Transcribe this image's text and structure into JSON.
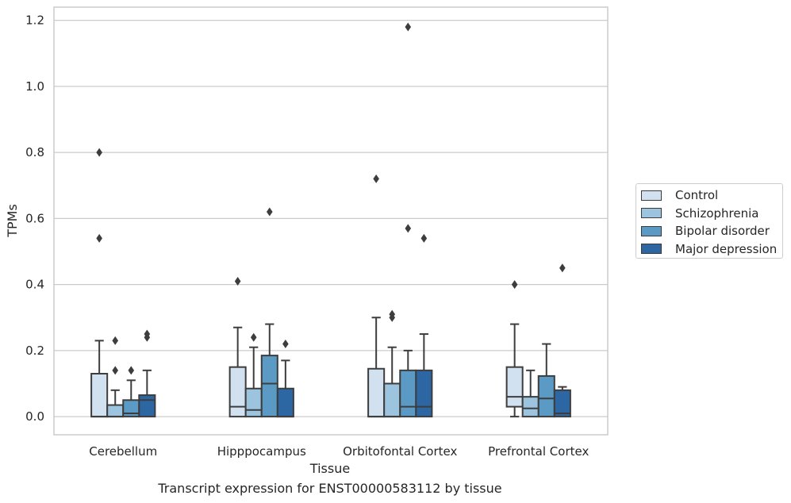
{
  "chart_data": {
    "type": "box",
    "xlabel": "Tissue",
    "ylabel": "TPMs",
    "caption": "Transcript expression for ENST00000583112 by tissue",
    "ylim": [
      -0.055,
      1.24
    ],
    "yticks": [
      "0.0",
      "0.2",
      "0.4",
      "0.6",
      "0.8",
      "1.0",
      "1.2"
    ],
    "ytick_values": [
      0.0,
      0.2,
      0.4,
      0.6,
      0.8,
      1.0,
      1.2
    ],
    "grid": true,
    "legend_position": "right",
    "categories": [
      "Cerebellum",
      "Hipppocampus",
      "Orbitofontal Cortex",
      "Prefrontal Cortex"
    ],
    "series": [
      {
        "name": "Control",
        "color": "#d1e1f0",
        "boxes": [
          {
            "min": 0.0,
            "q1": 0.0,
            "median": 0.0,
            "q3": 0.13,
            "max": 0.23,
            "outliers": [
              0.54,
              0.8
            ]
          },
          {
            "min": 0.0,
            "q1": 0.0,
            "median": 0.03,
            "q3": 0.15,
            "max": 0.27,
            "outliers": [
              0.41
            ]
          },
          {
            "min": 0.0,
            "q1": 0.0,
            "median": 0.0,
            "q3": 0.145,
            "max": 0.3,
            "outliers": [
              0.72
            ]
          },
          {
            "min": 0.0,
            "q1": 0.03,
            "median": 0.06,
            "q3": 0.15,
            "max": 0.28,
            "outliers": [
              0.4
            ]
          }
        ]
      },
      {
        "name": "Schizophrenia",
        "color": "#9cc4de",
        "boxes": [
          {
            "min": 0.0,
            "q1": 0.0,
            "median": 0.0,
            "q3": 0.035,
            "max": 0.08,
            "outliers": [
              0.14,
              0.23
            ]
          },
          {
            "min": 0.0,
            "q1": 0.0,
            "median": 0.02,
            "q3": 0.085,
            "max": 0.21,
            "outliers": [
              0.24
            ]
          },
          {
            "min": 0.0,
            "q1": 0.0,
            "median": 0.0,
            "q3": 0.1,
            "max": 0.21,
            "outliers": [
              0.3,
              0.31
            ]
          },
          {
            "min": 0.0,
            "q1": 0.0,
            "median": 0.025,
            "q3": 0.06,
            "max": 0.14,
            "outliers": []
          }
        ]
      },
      {
        "name": "Bipolar disorder",
        "color": "#5b9ac5",
        "boxes": [
          {
            "min": 0.0,
            "q1": 0.0,
            "median": 0.01,
            "q3": 0.05,
            "max": 0.11,
            "outliers": [
              0.14
            ]
          },
          {
            "min": 0.0,
            "q1": 0.0,
            "median": 0.1,
            "q3": 0.185,
            "max": 0.28,
            "outliers": [
              0.62
            ]
          },
          {
            "min": 0.0,
            "q1": 0.0,
            "median": 0.03,
            "q3": 0.14,
            "max": 0.2,
            "outliers": [
              0.57,
              1.18
            ]
          },
          {
            "min": 0.0,
            "q1": 0.0,
            "median": 0.055,
            "q3": 0.123,
            "max": 0.22,
            "outliers": []
          }
        ]
      },
      {
        "name": "Major depression",
        "color": "#2c67a3",
        "boxes": [
          {
            "min": 0.0,
            "q1": 0.0,
            "median": 0.05,
            "q3": 0.065,
            "max": 0.14,
            "outliers": [
              0.24,
              0.25
            ]
          },
          {
            "min": 0.0,
            "q1": 0.0,
            "median": 0.0,
            "q3": 0.085,
            "max": 0.17,
            "outliers": [
              0.22
            ]
          },
          {
            "min": 0.0,
            "q1": 0.0,
            "median": 0.03,
            "q3": 0.14,
            "max": 0.25,
            "outliers": [
              0.54
            ]
          },
          {
            "min": 0.0,
            "q1": 0.0,
            "median": 0.01,
            "q3": 0.08,
            "max": 0.09,
            "outliers": [
              0.45
            ]
          }
        ]
      }
    ]
  }
}
